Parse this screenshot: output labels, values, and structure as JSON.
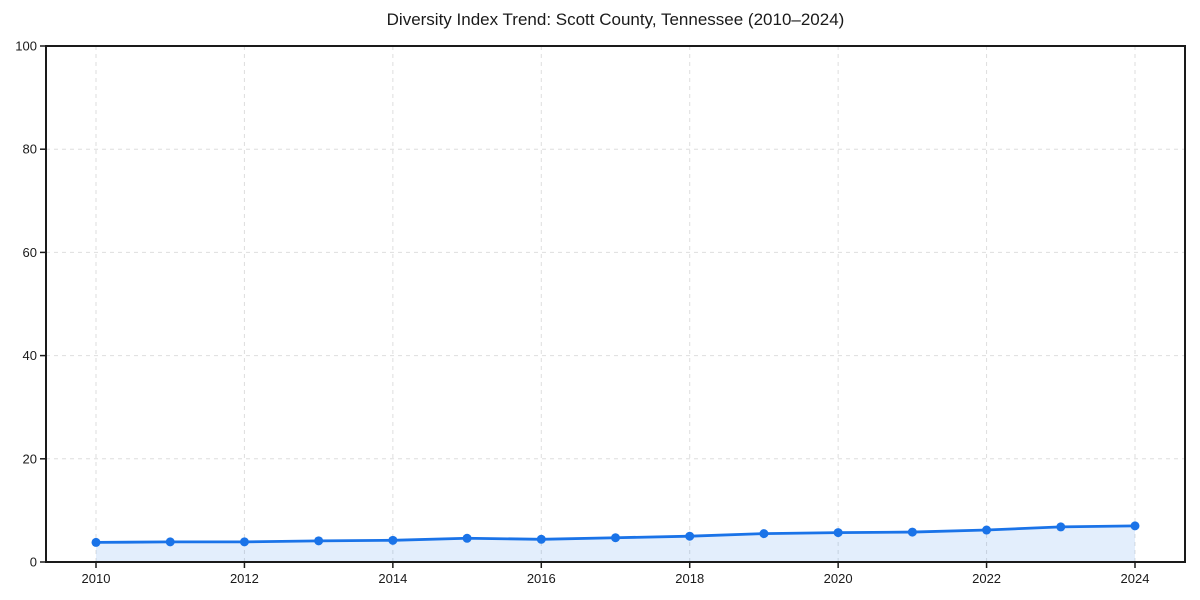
{
  "chart_data": {
    "type": "area",
    "title": "Diversity Index Trend: Scott County, Tennessee (2010–2024)",
    "x": [
      2010,
      2011,
      2012,
      2013,
      2014,
      2015,
      2016,
      2017,
      2018,
      2019,
      2020,
      2021,
      2022,
      2023,
      2024
    ],
    "values": [
      3.8,
      3.9,
      3.9,
      4.1,
      4.2,
      4.6,
      4.4,
      4.7,
      5.0,
      5.5,
      5.7,
      5.8,
      6.2,
      6.8,
      7.0
    ],
    "xlabel": "",
    "ylabel": "",
    "ylim": [
      0,
      100
    ],
    "yticks": [
      0,
      20,
      40,
      60,
      80,
      100
    ],
    "xticks": [
      2010,
      2012,
      2014,
      2016,
      2018,
      2020,
      2022,
      2024
    ],
    "grid": true,
    "legend": false,
    "colors": {
      "line": "#1a73e8",
      "marker": "#1a73e8",
      "fill": "rgba(26,115,232,0.12)",
      "grid": "#dedede",
      "axis": "#1a1a1a",
      "text": "#1a1a1a",
      "background": "#ffffff"
    }
  }
}
